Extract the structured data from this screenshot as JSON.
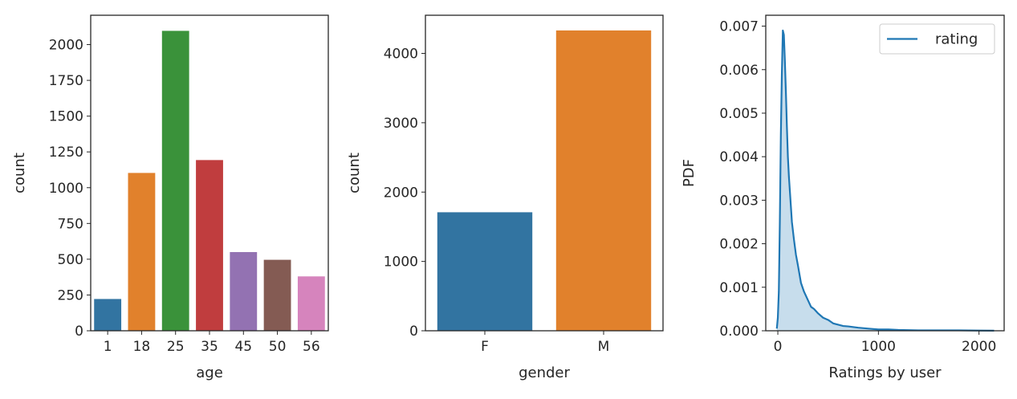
{
  "chart_data": [
    {
      "type": "bar",
      "categories": [
        "1",
        "18",
        "25",
        "35",
        "45",
        "50",
        "56"
      ],
      "values": [
        222,
        1103,
        2096,
        1193,
        550,
        496,
        380
      ],
      "colors": [
        "#3274a1",
        "#e1812c",
        "#3a923a",
        "#c03d3e",
        "#9372b2",
        "#845b53",
        "#d684bd"
      ],
      "xlabel": "age",
      "ylabel": "count",
      "ylim": [
        0,
        2205
      ],
      "yticks": [
        0,
        250,
        500,
        750,
        1000,
        1250,
        1500,
        1750,
        2000
      ],
      "grid": false
    },
    {
      "type": "bar",
      "categories": [
        "F",
        "M"
      ],
      "values": [
        1709,
        4331
      ],
      "colors": [
        "#3274a1",
        "#e1812c"
      ],
      "xlabel": "gender",
      "ylabel": "count",
      "ylim": [
        0,
        4550
      ],
      "yticks": [
        0,
        1000,
        2000,
        3000,
        4000
      ],
      "grid": false
    },
    {
      "type": "area",
      "series": [
        {
          "name": "rating",
          "color": "#1f77b4",
          "x": [
            -10,
            0,
            10,
            20,
            30,
            40,
            50,
            60,
            70,
            80,
            90,
            100,
            110,
            120,
            140,
            160,
            180,
            200,
            230,
            260,
            300,
            330,
            360,
            400,
            450,
            500,
            550,
            600,
            650,
            700,
            800,
            900,
            1000,
            1100,
            1200,
            1400,
            1600,
            1800,
            2000,
            2150
          ],
          "y": [
            5e-05,
            0.0003,
            0.0009,
            0.0025,
            0.0045,
            0.0059,
            0.0069,
            0.0068,
            0.0062,
            0.0055,
            0.0047,
            0.004,
            0.00355,
            0.0032,
            0.0025,
            0.0021,
            0.00175,
            0.0015,
            0.0011,
            0.0009,
            0.0007,
            0.00055,
            0.0005,
            0.0004,
            0.0003,
            0.00025,
            0.00017,
            0.00014,
            0.00011,
            0.0001,
            7e-05,
            5e-05,
            3e-05,
            3e-05,
            2e-05,
            1e-05,
            1e-05,
            1e-05,
            5e-06,
            3e-06
          ]
        }
      ],
      "xlabel": "Ratings by user",
      "ylabel": "PDF",
      "xlim": [
        -120,
        2250
      ],
      "ylim": [
        0,
        0.00725
      ],
      "xticks": [
        0,
        1000,
        2000
      ],
      "yticks": [
        0.0,
        0.001,
        0.002,
        0.003,
        0.004,
        0.005,
        0.006,
        0.007
      ],
      "ytick_labels": [
        "0.000",
        "0.001",
        "0.002",
        "0.003",
        "0.004",
        "0.005",
        "0.006",
        "0.007"
      ],
      "legend": "top-right",
      "grid": false
    }
  ]
}
